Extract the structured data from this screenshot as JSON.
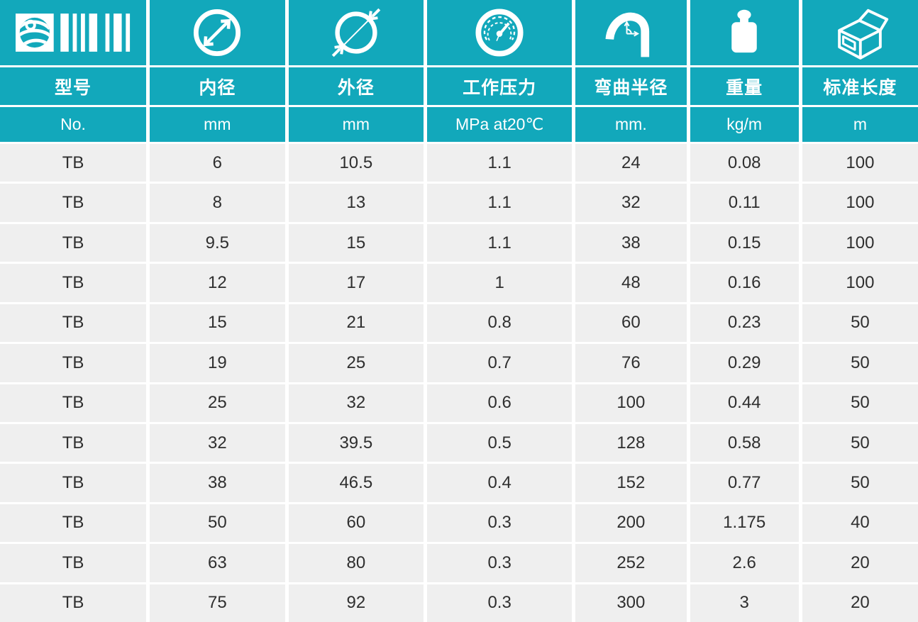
{
  "colors": {
    "accent": "#12a8bb",
    "row_bg": "#efefef",
    "gap": "#ffffff",
    "data_text": "#2f2f2f"
  },
  "table": {
    "columns": [
      {
        "icon": "brand-barcode-icon",
        "label": "型号",
        "unit": "No."
      },
      {
        "icon": "inner-diameter-icon",
        "label": "内径",
        "unit": "mm"
      },
      {
        "icon": "outer-diameter-icon",
        "label": "外径",
        "unit": "mm"
      },
      {
        "icon": "pressure-gauge-icon",
        "label": "工作压力",
        "unit": "MPa at20℃"
      },
      {
        "icon": "bend-radius-icon",
        "label": "弯曲半径",
        "unit": "mm."
      },
      {
        "icon": "weight-icon",
        "label": "重量",
        "unit": "kg/m"
      },
      {
        "icon": "package-box-icon",
        "label": "标准长度",
        "unit": "m"
      }
    ],
    "rows": [
      [
        "TB",
        "6",
        "10.5",
        "1.1",
        "24",
        "0.08",
        "100"
      ],
      [
        "TB",
        "8",
        "13",
        "1.1",
        "32",
        "0.11",
        "100"
      ],
      [
        "TB",
        "9.5",
        "15",
        "1.1",
        "38",
        "0.15",
        "100"
      ],
      [
        "TB",
        "12",
        "17",
        "1",
        "48",
        "0.16",
        "100"
      ],
      [
        "TB",
        "15",
        "21",
        "0.8",
        "60",
        "0.23",
        "50"
      ],
      [
        "TB",
        "19",
        "25",
        "0.7",
        "76",
        "0.29",
        "50"
      ],
      [
        "TB",
        "25",
        "32",
        "0.6",
        "100",
        "0.44",
        "50"
      ],
      [
        "TB",
        "32",
        "39.5",
        "0.5",
        "128",
        "0.58",
        "50"
      ],
      [
        "TB",
        "38",
        "46.5",
        "0.4",
        "152",
        "0.77",
        "50"
      ],
      [
        "TB",
        "50",
        "60",
        "0.3",
        "200",
        "1.175",
        "40"
      ],
      [
        "TB",
        "63",
        "80",
        "0.3",
        "252",
        "2.6",
        "20"
      ],
      [
        "TB",
        "75",
        "92",
        "0.3",
        "300",
        "3",
        "20"
      ]
    ]
  }
}
